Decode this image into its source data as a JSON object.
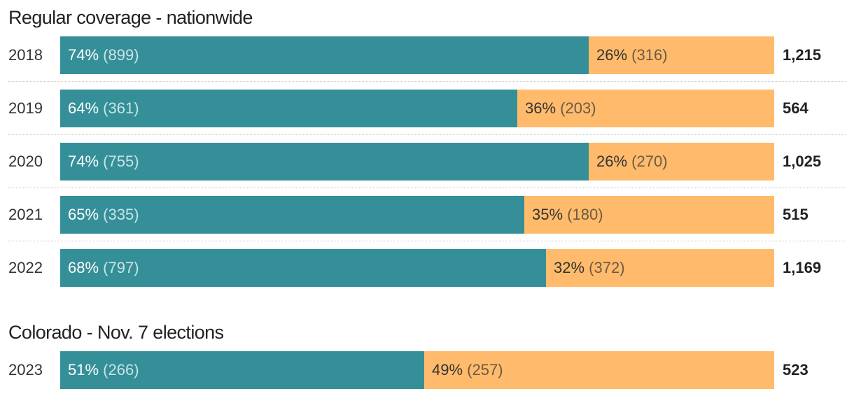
{
  "chart_data": [
    {
      "type": "bar",
      "stacked": true,
      "orientation": "horizontal",
      "title": "Regular coverage - nationwide",
      "categories": [
        "2018",
        "2019",
        "2020",
        "2021",
        "2022"
      ],
      "series": [
        {
          "percent": [
            74,
            64,
            74,
            65,
            68
          ],
          "values": [
            899,
            361,
            755,
            335,
            797
          ],
          "color": "#358f98"
        },
        {
          "percent": [
            26,
            36,
            26,
            35,
            32
          ],
          "values": [
            316,
            203,
            270,
            180,
            372
          ],
          "color": "#ffbb6b"
        }
      ],
      "totals": [
        "1,215",
        "564",
        "1,025",
        "515",
        "1,169"
      ],
      "percent_labels": [
        [
          "74%",
          "26%"
        ],
        [
          "64%",
          "36%"
        ],
        [
          "74%",
          "26%"
        ],
        [
          "65%",
          "35%"
        ],
        [
          "68%",
          "32%"
        ]
      ],
      "count_labels": [
        [
          "(899)",
          "(316)"
        ],
        [
          "(361)",
          "(203)"
        ],
        [
          "(755)",
          "(270)"
        ],
        [
          "(335)",
          "(180)"
        ],
        [
          "(797)",
          "(372)"
        ]
      ]
    },
    {
      "type": "bar",
      "stacked": true,
      "orientation": "horizontal",
      "title": "Colorado - Nov. 7 elections",
      "categories": [
        "2023"
      ],
      "series": [
        {
          "percent": [
            51
          ],
          "values": [
            266
          ],
          "color": "#358f98"
        },
        {
          "percent": [
            49
          ],
          "values": [
            257
          ],
          "color": "#ffbb6b"
        }
      ],
      "totals": [
        "523"
      ],
      "percent_labels": [
        [
          "51%",
          "49%"
        ]
      ],
      "count_labels": [
        [
          "(266)",
          "(257)"
        ]
      ]
    }
  ]
}
